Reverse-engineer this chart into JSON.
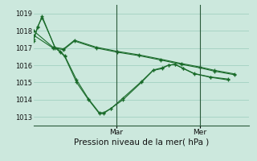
{
  "title": "Pression niveau de la mer( hPa )",
  "bg_color": "#cce8dd",
  "grid_color": "#99ccbb",
  "line_color": "#1a6b2a",
  "marker_color": "#1a6b2a",
  "ylim": [
    1012.5,
    1019.5
  ],
  "yticks": [
    1013,
    1014,
    1015,
    1016,
    1017,
    1018,
    1019
  ],
  "vline_positions": [
    0.385,
    0.77
  ],
  "vline_labels": [
    "Mar",
    "Mer"
  ],
  "series": [
    {
      "x": [
        0.0,
        0.02,
        0.04,
        0.1,
        0.125,
        0.145,
        0.2,
        0.255,
        0.305,
        0.325,
        0.36,
        0.415,
        0.5,
        0.555,
        0.595,
        0.625,
        0.655,
        0.695,
        0.745,
        0.82,
        0.9
      ],
      "y": [
        1017.5,
        1018.2,
        1018.85,
        1017.0,
        1016.75,
        1016.5,
        1015.0,
        1014.0,
        1013.2,
        1013.2,
        1013.5,
        1014.0,
        1015.0,
        1015.7,
        1015.8,
        1016.0,
        1016.05,
        1015.8,
        1015.5,
        1015.3,
        1015.15
      ]
    },
    {
      "x": [
        0.0,
        0.02,
        0.04,
        0.1,
        0.125,
        0.145,
        0.2,
        0.255,
        0.305,
        0.325,
        0.36,
        0.415,
        0.5,
        0.555,
        0.595,
        0.625,
        0.655,
        0.695,
        0.745,
        0.82,
        0.9
      ],
      "y": [
        1017.4,
        1018.25,
        1018.75,
        1017.05,
        1016.8,
        1016.55,
        1015.15,
        1014.05,
        1013.25,
        1013.25,
        1013.5,
        1014.1,
        1015.05,
        1015.72,
        1015.85,
        1016.0,
        1016.05,
        1015.82,
        1015.52,
        1015.32,
        1015.2
      ]
    },
    {
      "x": [
        0.0,
        0.09,
        0.14,
        0.19,
        0.29,
        0.39,
        0.49,
        0.59,
        0.685,
        0.77,
        0.84,
        0.93
      ],
      "y": [
        1017.75,
        1017.0,
        1016.9,
        1017.4,
        1017.0,
        1016.75,
        1016.55,
        1016.3,
        1016.05,
        1015.85,
        1015.65,
        1015.45
      ]
    },
    {
      "x": [
        0.0,
        0.09,
        0.14,
        0.19,
        0.29,
        0.39,
        0.49,
        0.59,
        0.685,
        0.77,
        0.84,
        0.93
      ],
      "y": [
        1018.0,
        1017.05,
        1016.95,
        1017.45,
        1017.05,
        1016.8,
        1016.6,
        1016.35,
        1016.1,
        1015.9,
        1015.7,
        1015.5
      ]
    }
  ]
}
